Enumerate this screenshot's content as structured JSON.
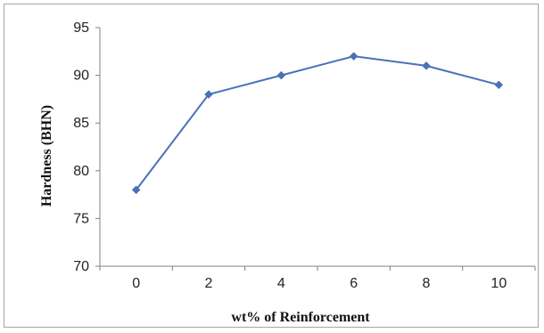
{
  "chart_data": {
    "type": "line",
    "title": "",
    "xlabel": "wt% of Reinforcement",
    "ylabel": "Hardness (BHN)",
    "x": [
      0,
      2,
      4,
      6,
      8,
      10
    ],
    "xticks": [
      "0",
      "2",
      "4",
      "6",
      "8",
      "10"
    ],
    "ylim": [
      70,
      95
    ],
    "yticks": [
      70,
      75,
      80,
      85,
      90,
      95
    ],
    "grid": false,
    "legend": "none",
    "series": [
      {
        "values": [
          78,
          88,
          90,
          92,
          91,
          89
        ],
        "color": "#4a72b8",
        "marker": "diamond"
      }
    ]
  }
}
